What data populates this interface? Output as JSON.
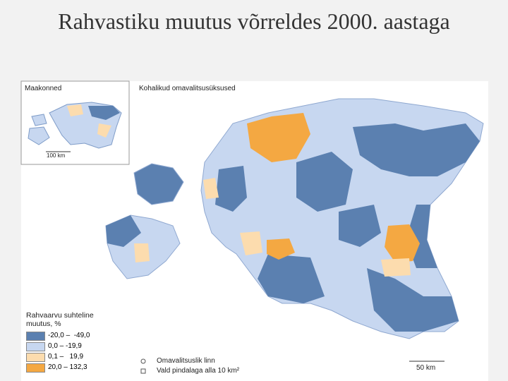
{
  "header": {
    "title": "Rahvastiku muutus võrreldes 2000. aastaga"
  },
  "map": {
    "inset_title": "Maakonned",
    "inset_scale": "100 km",
    "main_title": "Kohalikud omavalitsusüksused",
    "scale": "50 km",
    "legend": {
      "title": "Rahvaarvu suhteline muutus, %",
      "items": [
        {
          "label": "-20,0 –  -49,0",
          "color": "#5b80b0"
        },
        {
          "label": "0,0 – -19,9",
          "color": "#c7d7f0"
        },
        {
          "label": "0,1 –   19,9",
          "color": "#fcdcae"
        },
        {
          "label": "20,0 – 132,3",
          "color": "#f4a842"
        }
      ],
      "symbols": [
        "Omavalitsuslik linn",
        "Vald pindalaga alla 10 km²"
      ]
    }
  }
}
